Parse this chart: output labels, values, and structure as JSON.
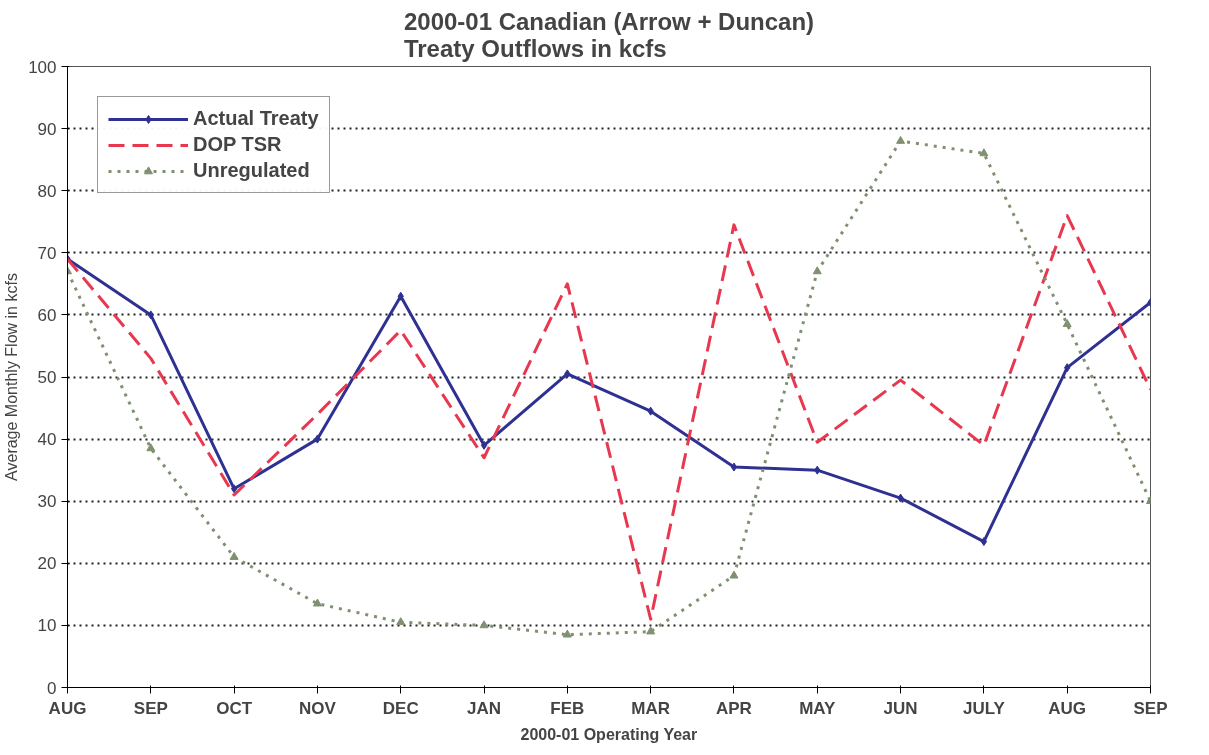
{
  "chart_data": {
    "type": "line",
    "title": "2000-01 Canadian (Arrow + Duncan)\nTreaty Outflows in kcfs",
    "xlabel": "2000-01 Operating Year",
    "ylabel": "Average Monthly Flow in kcfs",
    "categories": [
      "AUG",
      "SEP",
      "OCT",
      "NOV",
      "DEC",
      "JAN",
      "FEB",
      "MAR",
      "APR",
      "MAY",
      "JUN",
      "JULY",
      "AUG",
      "SEP"
    ],
    "series": [
      {
        "name": "Actual Treaty",
        "color": "#2e3192",
        "values": [
          69,
          60,
          32,
          40,
          63,
          39,
          50.5,
          44.5,
          35.5,
          35,
          30.5,
          23.5,
          51.5,
          62
        ],
        "line_style": "solid",
        "marker": "diamond"
      },
      {
        "name": "DOP TSR",
        "color": "#e8384f",
        "values": [
          69,
          53,
          31,
          44,
          57.5,
          37,
          65,
          11,
          74.5,
          39.5,
          49.5,
          39,
          76,
          48
        ],
        "line_style": "dashed",
        "marker": "none"
      },
      {
        "name": "Unregulated",
        "color": "#7f9170",
        "values": [
          67,
          38.5,
          21,
          13.5,
          10.5,
          10,
          8.5,
          9,
          18,
          67,
          88,
          86,
          58.5,
          30
        ],
        "line_style": "dotted",
        "marker": "triangle"
      }
    ],
    "ylim": [
      0,
      100
    ],
    "yticks": [
      0,
      10,
      20,
      30,
      40,
      50,
      60,
      70,
      80,
      90,
      100
    ],
    "grid": "y",
    "legend": "top left"
  }
}
